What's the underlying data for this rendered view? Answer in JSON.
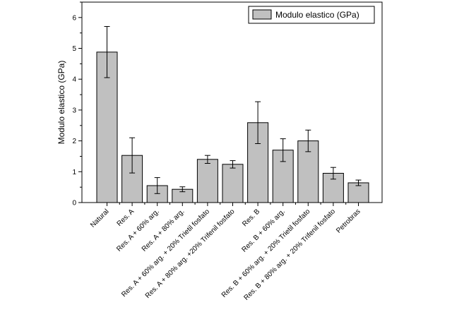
{
  "chart_data": {
    "type": "bar",
    "ylabel": "Modulo elastico (GPa)",
    "xlabel": "",
    "ylim": [
      0,
      6.5
    ],
    "yticks": [
      0,
      1,
      2,
      3,
      4,
      5,
      6
    ],
    "grid": false,
    "legend_position": "top-right",
    "categories": [
      "Natural",
      "Res. A",
      "Res. A + 60% arg.",
      "Res. A + 80% arg.",
      "Res. A + 60% arg. + 20% Trietil fosfato",
      "Res. A + 80% arg. +20% Trifenil fosfato",
      "Res. B",
      "Res. B + 60% arg.",
      "Res. B + 60% arg. + 20% Trietil fosfato",
      "Res. B + 80% arg. + 20% Trifenil fosfato",
      "Petrobras"
    ],
    "series": [
      {
        "name": "Modulo elastico (GPa)",
        "values": [
          4.88,
          1.53,
          0.55,
          0.43,
          1.4,
          1.24,
          2.59,
          1.7,
          2.0,
          0.95,
          0.64
        ],
        "errors": [
          0.83,
          0.57,
          0.26,
          0.08,
          0.13,
          0.12,
          0.68,
          0.37,
          0.35,
          0.19,
          0.09
        ]
      }
    ],
    "colors": {
      "bar_fill": "#c0c0c0",
      "bar_stroke": "#000000",
      "axis": "#000000"
    }
  }
}
